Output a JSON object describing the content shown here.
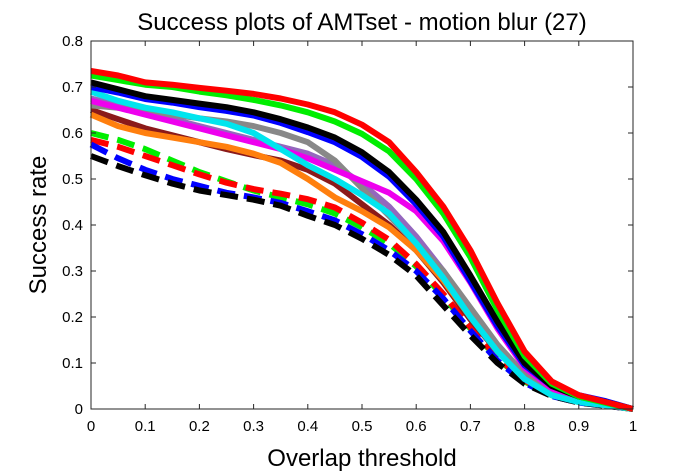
{
  "chart_data": {
    "type": "line",
    "title": "Success plots of AMTset - motion blur (27)",
    "xlabel": "Overlap threshold",
    "ylabel": "Success rate",
    "xlim": [
      0,
      1
    ],
    "ylim": [
      0,
      0.8
    ],
    "x_ticks": [
      "0",
      "0.1",
      "0.2",
      "0.3",
      "0.4",
      "0.5",
      "0.6",
      "0.7",
      "0.8",
      "0.9",
      "1"
    ],
    "y_ticks": [
      "0",
      "0.1",
      "0.2",
      "0.3",
      "0.4",
      "0.5",
      "0.6",
      "0.7",
      "0.8"
    ],
    "grid": false,
    "legend": "none",
    "x": [
      0,
      0.05,
      0.1,
      0.15,
      0.2,
      0.25,
      0.3,
      0.35,
      0.4,
      0.45,
      0.5,
      0.55,
      0.6,
      0.65,
      0.7,
      0.75,
      0.8,
      0.85,
      0.9,
      0.95,
      1.0
    ],
    "series": [
      {
        "color": "#ff0000",
        "style": "solid",
        "values": [
          0.735,
          0.725,
          0.71,
          0.705,
          0.698,
          0.692,
          0.685,
          0.675,
          0.662,
          0.645,
          0.618,
          0.58,
          0.515,
          0.44,
          0.345,
          0.23,
          0.125,
          0.06,
          0.03,
          0.015,
          0.0
        ]
      },
      {
        "color": "#00ee00",
        "style": "solid",
        "values": [
          0.725,
          0.715,
          0.705,
          0.7,
          0.69,
          0.682,
          0.672,
          0.66,
          0.645,
          0.625,
          0.598,
          0.56,
          0.5,
          0.425,
          0.33,
          0.215,
          0.115,
          0.055,
          0.027,
          0.013,
          0.0
        ]
      },
      {
        "color": "#000000",
        "style": "solid",
        "values": [
          0.71,
          0.695,
          0.68,
          0.672,
          0.664,
          0.656,
          0.645,
          0.63,
          0.612,
          0.59,
          0.558,
          0.515,
          0.455,
          0.385,
          0.29,
          0.19,
          0.1,
          0.05,
          0.027,
          0.015,
          0.0
        ]
      },
      {
        "color": "#0000ff",
        "style": "solid",
        "values": [
          0.7,
          0.688,
          0.674,
          0.666,
          0.656,
          0.648,
          0.638,
          0.622,
          0.602,
          0.58,
          0.548,
          0.505,
          0.445,
          0.375,
          0.278,
          0.18,
          0.095,
          0.05,
          0.03,
          0.017,
          0.0
        ]
      },
      {
        "color": "#00e5ee",
        "style": "solid",
        "values": [
          0.69,
          0.67,
          0.655,
          0.645,
          0.632,
          0.62,
          0.6,
          0.565,
          0.53,
          0.5,
          0.465,
          0.425,
          0.36,
          0.285,
          0.2,
          0.125,
          0.065,
          0.03,
          0.015,
          0.008,
          0.0
        ]
      },
      {
        "color": "#ee00ee",
        "style": "solid",
        "values": [
          0.67,
          0.655,
          0.64,
          0.625,
          0.61,
          0.595,
          0.58,
          0.565,
          0.545,
          0.52,
          0.495,
          0.47,
          0.43,
          0.365,
          0.275,
          0.175,
          0.09,
          0.045,
          0.022,
          0.01,
          0.0
        ]
      },
      {
        "color": "#888888",
        "style": "solid",
        "values": [
          0.66,
          0.655,
          0.648,
          0.64,
          0.632,
          0.625,
          0.615,
          0.6,
          0.58,
          0.54,
          0.48,
          0.42,
          0.36,
          0.3,
          0.22,
          0.14,
          0.075,
          0.035,
          0.018,
          0.009,
          0.0
        ]
      },
      {
        "color": "#ff7f0e",
        "style": "solid",
        "values": [
          0.64,
          0.615,
          0.6,
          0.59,
          0.58,
          0.57,
          0.555,
          0.535,
          0.5,
          0.46,
          0.43,
          0.395,
          0.345,
          0.28,
          0.2,
          0.13,
          0.07,
          0.035,
          0.017,
          0.008,
          0.0
        ]
      },
      {
        "color": "#8b1a1a",
        "style": "solid",
        "values": [
          0.65,
          0.63,
          0.61,
          0.595,
          0.58,
          0.565,
          0.552,
          0.54,
          0.52,
          0.49,
          0.445,
          0.4,
          0.345,
          0.275,
          0.195,
          0.125,
          0.068,
          0.035,
          0.017,
          0.008,
          0.0
        ]
      },
      {
        "color": "#9467bd",
        "style": "solid",
        "values": [
          0.675,
          0.66,
          0.645,
          0.63,
          0.615,
          0.6,
          0.585,
          0.57,
          0.555,
          0.53,
          0.49,
          0.44,
          0.375,
          0.3,
          0.215,
          0.135,
          0.072,
          0.035,
          0.017,
          0.008,
          0.0
        ]
      },
      {
        "color": "#00ee00",
        "style": "dashed",
        "values": [
          0.6,
          0.585,
          0.565,
          0.54,
          0.515,
          0.495,
          0.475,
          0.46,
          0.445,
          0.425,
          0.395,
          0.36,
          0.31,
          0.245,
          0.175,
          0.11,
          0.06,
          0.03,
          0.015,
          0.008,
          0.0
        ]
      },
      {
        "color": "#ff0000",
        "style": "dashed",
        "values": [
          0.585,
          0.57,
          0.55,
          0.53,
          0.51,
          0.492,
          0.478,
          0.468,
          0.456,
          0.438,
          0.405,
          0.368,
          0.315,
          0.25,
          0.178,
          0.112,
          0.062,
          0.032,
          0.016,
          0.008,
          0.0
        ]
      },
      {
        "color": "#0000ff",
        "style": "dashed",
        "values": [
          0.575,
          0.545,
          0.52,
          0.5,
          0.485,
          0.47,
          0.46,
          0.448,
          0.43,
          0.41,
          0.38,
          0.345,
          0.3,
          0.24,
          0.17,
          0.105,
          0.057,
          0.028,
          0.014,
          0.007,
          0.0
        ]
      },
      {
        "color": "#000000",
        "style": "dashed",
        "values": [
          0.55,
          0.528,
          0.508,
          0.49,
          0.475,
          0.465,
          0.455,
          0.442,
          0.42,
          0.4,
          0.37,
          0.335,
          0.29,
          0.225,
          0.16,
          0.1,
          0.055,
          0.028,
          0.014,
          0.007,
          0.0
        ]
      }
    ]
  }
}
